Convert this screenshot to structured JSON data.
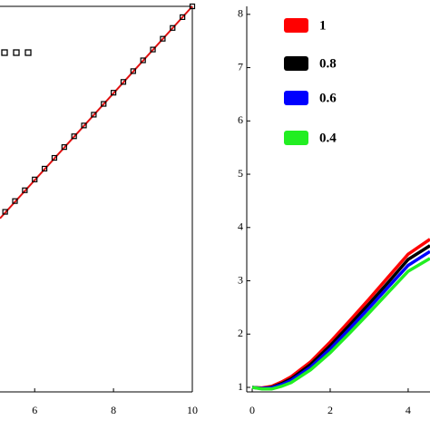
{
  "chart_data": [
    {
      "type": "line",
      "xlim": [
        5.12,
        10
      ],
      "xticks": [
        6,
        8,
        10
      ],
      "ylim": [
        0,
        1
      ],
      "series": [
        {
          "color": "#e01010",
          "x": [
            5.12,
            10
          ],
          "values": [
            0.45,
            1
          ]
        },
        {
          "color": "#000000",
          "marker": "square",
          "x": [
            5.25,
            5.5,
            5.75,
            6,
            6.25,
            6.5,
            6.75,
            7,
            7.25,
            7.5,
            7.75,
            8,
            8.25,
            8.5,
            8.75,
            9,
            9.25,
            9.5,
            9.75,
            10
          ],
          "values": [
            0.467,
            0.495,
            0.523,
            0.551,
            0.579,
            0.607,
            0.635,
            0.663,
            0.691,
            0.719,
            0.747,
            0.776,
            0.804,
            0.832,
            0.86,
            0.888,
            0.916,
            0.944,
            0.972,
            1.0
          ]
        }
      ]
    },
    {
      "type": "line",
      "xlim": [
        -0.14,
        4.56
      ],
      "xticks": [
        0,
        2,
        4
      ],
      "ylim": [
        0.915,
        8.15
      ],
      "yticks": [
        1,
        2,
        3,
        4,
        5,
        6,
        7,
        8
      ],
      "x": [
        0,
        0.25,
        0.5,
        0.75,
        1,
        1.5,
        2,
        2.5,
        3,
        3.5,
        4,
        4.56
      ],
      "series": [
        {
          "name": "1",
          "color": "#ff0000",
          "label_color": "#e00000",
          "values": [
            1,
            0.99,
            1.02,
            1.1,
            1.2,
            1.48,
            1.85,
            2.25,
            2.66,
            3.08,
            3.5,
            3.78
          ]
        },
        {
          "name": "0.8",
          "color": "#000000",
          "label_color": "#333300",
          "values": [
            1,
            0.98,
            1.0,
            1.07,
            1.16,
            1.43,
            1.78,
            2.17,
            2.57,
            2.98,
            3.4,
            3.66
          ]
        },
        {
          "name": "0.6",
          "color": "#0000ff",
          "label_color": "#0000cc",
          "values": [
            1,
            0.98,
            0.99,
            1.05,
            1.13,
            1.38,
            1.72,
            2.1,
            2.49,
            2.89,
            3.29,
            3.55
          ]
        },
        {
          "name": "0.4",
          "color": "#22ee22",
          "label_color": "#118811",
          "values": [
            1,
            0.97,
            0.97,
            1.02,
            1.09,
            1.33,
            1.65,
            2.02,
            2.4,
            2.79,
            3.18,
            3.42
          ]
        }
      ]
    }
  ]
}
